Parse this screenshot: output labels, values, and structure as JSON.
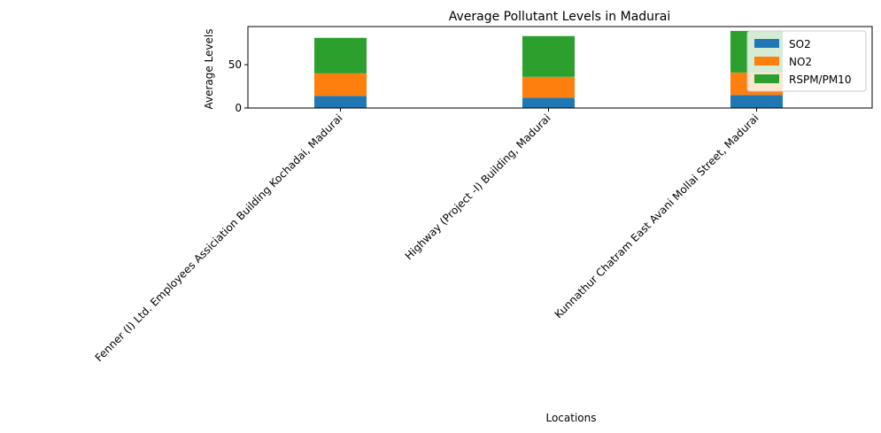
{
  "chart_data": {
    "type": "bar",
    "stacked": true,
    "title": "Average Pollutant Levels in Madurai",
    "xlabel": "Locations",
    "ylabel": "Average Levels",
    "categories": [
      "Fenner (I) Ltd. Employees Assiciation Building Kochadai, Madurai",
      "Highway (Project -I) Building, Madurai",
      "Kunnathur Chatram East Avani Mollai Street, Madurai"
    ],
    "series": [
      {
        "name": "SO2",
        "color": "#1f77b4",
        "values": [
          14,
          12,
          15
        ]
      },
      {
        "name": "NO2",
        "color": "#ff7f0e",
        "values": [
          26,
          24,
          26
        ]
      },
      {
        "name": "RSPM/PM10",
        "color": "#2ca02c",
        "values": [
          41,
          47,
          48
        ]
      }
    ],
    "ylim": [
      0,
      94
    ],
    "yticks": [
      0,
      50
    ],
    "grid": false,
    "legend_position": "top-right"
  }
}
